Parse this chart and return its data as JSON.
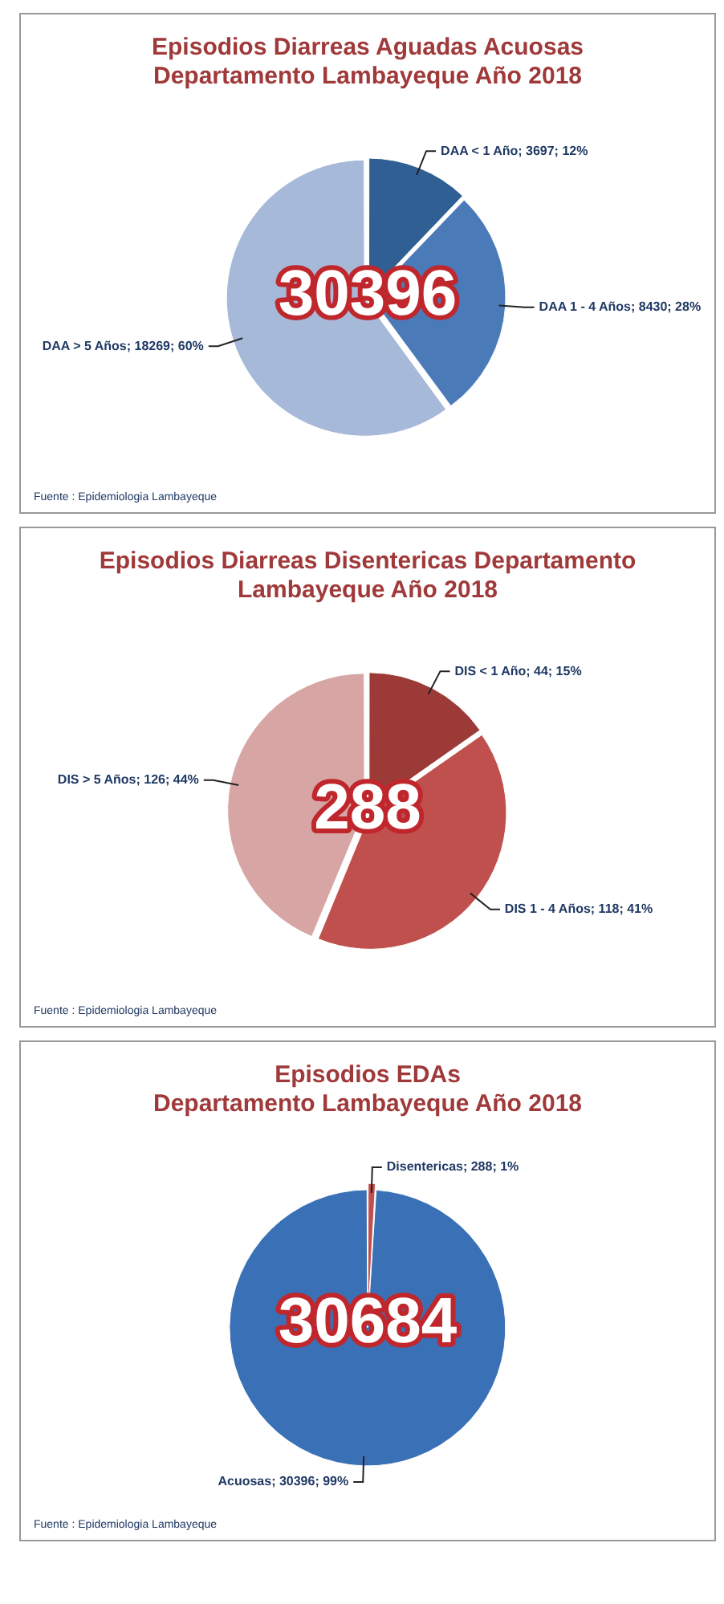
{
  "chart_data": [
    {
      "type": "pie",
      "title": [
        "Episodios Diarreas Aguadas Acuosas",
        "Departamento Lambayeque Año 2018"
      ],
      "categories": [
        "DAA < 1 Año",
        "DAA 1 - 4 Años",
        "DAA > 5 Años"
      ],
      "values": [
        3697,
        8430,
        18269
      ],
      "value_labels": [
        "3697; 12%",
        "8430; 28%",
        "18269; 60%"
      ],
      "colors": [
        "#2f5f93",
        "#4a7ab8",
        "#a7b9d8"
      ],
      "annotations": [
        "30396",
        "Fuente : Epidemiologia Lambayeque"
      ],
      "legend": false
    },
    {
      "type": "pie",
      "title": [
        "Episodios Diarreas Disentericas Departamento",
        "Lambayeque Año 2018"
      ],
      "categories": [
        "DIS < 1 Año",
        "DIS 1 - 4 Años",
        "DIS > 5 Años"
      ],
      "values": [
        44,
        118,
        126
      ],
      "value_labels": [
        "44; 15%",
        "118; 41%",
        "126; 44%"
      ],
      "colors": [
        "#9b3a37",
        "#c0504d",
        "#d6a5a4"
      ],
      "annotations": [
        "288",
        "Fuente : Epidemiologia Lambayeque"
      ],
      "legend": false
    },
    {
      "type": "pie",
      "title": [
        "Episodios EDAs",
        "Departamento Lambayeque Año 2018"
      ],
      "categories": [
        "Disentericas",
        "Acuosas"
      ],
      "values": [
        288,
        30396
      ],
      "value_labels": [
        "288; 1%",
        "30396; 99%"
      ],
      "colors": [
        "#c0504d",
        "#3a70b5"
      ],
      "annotations": [
        "30684",
        "Fuente : Epidemiologia Lambayeque"
      ],
      "legend": false
    }
  ]
}
